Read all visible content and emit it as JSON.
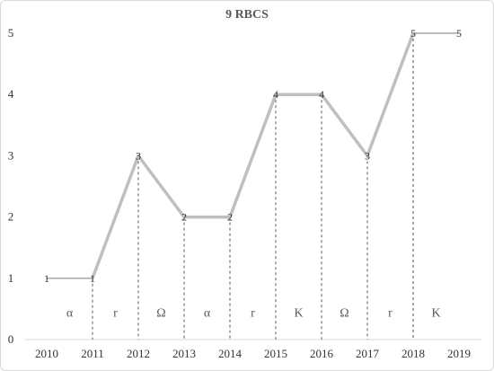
{
  "chart_data": {
    "type": "line",
    "title": "9 RBCS",
    "xlabel": "",
    "ylabel": "",
    "x": [
      "2010",
      "2011",
      "2012",
      "2013",
      "2014",
      "2015",
      "2016",
      "2017",
      "2018",
      "2019"
    ],
    "series": [
      {
        "values": [
          null,
          1,
          3,
          2,
          2,
          4,
          4,
          3,
          5,
          null
        ]
      }
    ],
    "data_labels": [
      {
        "x": "2010",
        "value": 1
      },
      {
        "x": "2011",
        "value": 1
      },
      {
        "x": "2012",
        "value": 3
      },
      {
        "x": "2013",
        "value": 2
      },
      {
        "x": "2014",
        "value": 2
      },
      {
        "x": "2015",
        "value": 4
      },
      {
        "x": "2016",
        "value": 4
      },
      {
        "x": "2017",
        "value": 3
      },
      {
        "x": "2018",
        "value": 5
      },
      {
        "x": "2019",
        "value": 5
      }
    ],
    "flat_segments": [
      {
        "from": "2010",
        "to": "2011",
        "value": 1
      },
      {
        "from": "2018",
        "to": "2019",
        "value": 5
      }
    ],
    "drop_lines_at": [
      "2011",
      "2012",
      "2013",
      "2014",
      "2015",
      "2016",
      "2017",
      "2018"
    ],
    "segment_labels": [
      {
        "from": "2010",
        "to": "2011",
        "text": "α"
      },
      {
        "from": "2011",
        "to": "2012",
        "text": "r"
      },
      {
        "from": "2012",
        "to": "2013",
        "text": "Ω"
      },
      {
        "from": "2013",
        "to": "2014",
        "text": "α"
      },
      {
        "from": "2014",
        "to": "2015",
        "text": "r"
      },
      {
        "from": "2015",
        "to": "2016",
        "text": "K"
      },
      {
        "from": "2016",
        "to": "2017",
        "text": "Ω"
      },
      {
        "from": "2017",
        "to": "2018",
        "text": "r"
      },
      {
        "from": "2018",
        "to": "2019",
        "text": "K"
      }
    ],
    "segment_label_value": 0.45,
    "ylim": [
      0,
      5
    ],
    "yticks": [
      0,
      1,
      2,
      3,
      4,
      5
    ],
    "grid": false,
    "legend": "none",
    "colors": {
      "line": "#bfbfbf",
      "flat_line": "#a6a6a6",
      "drop_line": "#595959",
      "axis": "#d9d9d9"
    }
  }
}
